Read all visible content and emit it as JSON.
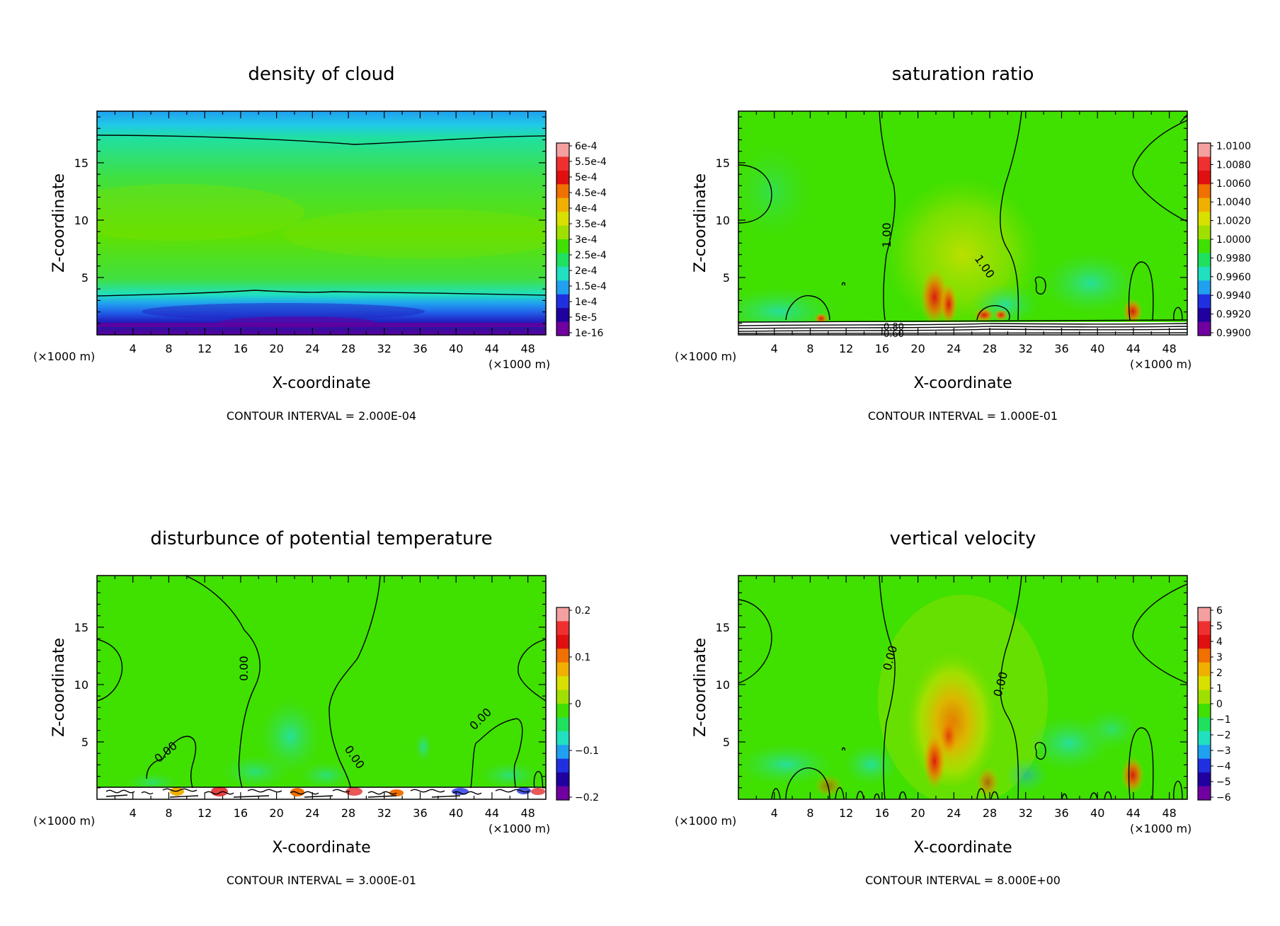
{
  "panels": [
    {
      "title": "density of cloud",
      "xlabel": "X-coordinate",
      "ylabel": "Z-coordinate",
      "x_unit_left": "(×1000 m)",
      "x_unit_right": "(×1000 m)",
      "contour_interval": "CONTOUR INTERVAL = 2.000E-04",
      "x_ticks": [
        "4",
        "8",
        "12",
        "16",
        "20",
        "24",
        "28",
        "32",
        "36",
        "40",
        "44",
        "48"
      ],
      "y_ticks": [
        "5",
        "10",
        "15"
      ],
      "colorbar_labels": [
        "6e-4",
        "5.5e-4",
        "5e-4",
        "4.5e-4",
        "4e-4",
        "3.5e-4",
        "3e-4",
        "2.5e-4",
        "2e-4",
        "1.5e-4",
        "1e-4",
        "5e-5",
        "1e-16"
      ],
      "contour_labels": []
    },
    {
      "title": "saturation ratio",
      "xlabel": "X-coordinate",
      "ylabel": "Z-coordinate",
      "x_unit_left": "(×1000 m)",
      "x_unit_right": "(×1000 m)",
      "contour_interval": "CONTOUR INTERVAL = 1.000E-01",
      "x_ticks": [
        "4",
        "8",
        "12",
        "16",
        "20",
        "24",
        "28",
        "32",
        "36",
        "40",
        "44",
        "48"
      ],
      "y_ticks": [
        "5",
        "10",
        "15"
      ],
      "colorbar_labels": [
        "1.0100",
        "1.0080",
        "1.0060",
        "1.0040",
        "1.0020",
        "1.0000",
        "0.9980",
        "0.9960",
        "0.9940",
        "0.9920",
        "0.9900"
      ],
      "contour_labels": [
        "1.00",
        "1.00",
        "0.80",
        "0.60"
      ]
    },
    {
      "title": "disturbunce of potential temperature",
      "xlabel": "X-coordinate",
      "ylabel": "Z-coordinate",
      "x_unit_left": "(×1000 m)",
      "x_unit_right": "(×1000 m)",
      "contour_interval": "CONTOUR INTERVAL = 3.000E-01",
      "x_ticks": [
        "4",
        "8",
        "12",
        "16",
        "20",
        "24",
        "28",
        "32",
        "36",
        "40",
        "44",
        "48"
      ],
      "y_ticks": [
        "5",
        "10",
        "15"
      ],
      "colorbar_labels": [
        "0.2",
        "0.1",
        "0",
        "−0.1",
        "−0.2"
      ],
      "contour_labels": [
        "0.00",
        "0.00",
        "0.00",
        "0.00"
      ]
    },
    {
      "title": "vertical velocity",
      "xlabel": "X-coordinate",
      "ylabel": "Z-coordinate",
      "x_unit_left": "(×1000 m)",
      "x_unit_right": "(×1000 m)",
      "contour_interval": "CONTOUR INTERVAL = 8.000E+00",
      "x_ticks": [
        "4",
        "8",
        "12",
        "16",
        "20",
        "24",
        "28",
        "32",
        "36",
        "40",
        "44",
        "48"
      ],
      "y_ticks": [
        "5",
        "10",
        "15"
      ],
      "colorbar_labels": [
        "6",
        "5",
        "4",
        "3",
        "2",
        "1",
        "0",
        "−1",
        "−2",
        "−3",
        "−4",
        "−5",
        "−6"
      ],
      "contour_labels": [
        "0.00",
        "0.00"
      ]
    }
  ],
  "colorbar_colors": [
    "#f4a0a0",
    "#f03030",
    "#e01010",
    "#f07000",
    "#f0b000",
    "#d8e000",
    "#a0e000",
    "#40e000",
    "#20e060",
    "#20e0c0",
    "#20a0f0",
    "#2030e0",
    "#2000a0",
    "#7000a0"
  ],
  "chart_data": [
    {
      "type": "heatmap",
      "title": "density of cloud",
      "xlabel": "X-coordinate",
      "ylabel": "Z-coordinate",
      "x_range_km": [
        0,
        50
      ],
      "z_range_km": [
        0,
        19.5
      ],
      "colorbar_range": [
        1e-16,
        0.0006
      ],
      "contour_interval": 0.0002,
      "summary": "Green band (~3e-4) from z≈4 to 17 km; cyan/blue above 17 km; dark blue/purple near surface below 3.5 km"
    },
    {
      "type": "heatmap",
      "title": "saturation ratio",
      "xlabel": "X-coordinate",
      "ylabel": "Z-coordinate",
      "x_range_km": [
        0,
        50
      ],
      "z_range_km": [
        0,
        19.5
      ],
      "colorbar_range": [
        0.99,
        1.01
      ],
      "contour_interval": 0.1,
      "summary": "Mostly ~1.000 (green); yellow/red plume near x≈20-24 km below 9 km; near-surface maxima at x≈9, 22, 28, 43 km"
    },
    {
      "type": "heatmap",
      "title": "disturbunce of potential temperature",
      "xlabel": "X-coordinate",
      "ylabel": "Z-coordinate",
      "x_range_km": [
        0,
        50
      ],
      "z_range_km": [
        0,
        19.5
      ],
      "colorbar_range": [
        -0.2,
        0.2
      ],
      "contour_interval": 0.3,
      "summary": "Near 0 everywhere; noisy contours in lowest 1.5 km"
    },
    {
      "type": "heatmap",
      "title": "vertical velocity",
      "xlabel": "X-coordinate",
      "ylabel": "Z-coordinate",
      "x_range_km": [
        0,
        50
      ],
      "z_range_km": [
        0,
        19.5
      ],
      "colorbar_range": [
        -6,
        6
      ],
      "contour_interval": 8.0,
      "summary": "Updraft core ~3 near x≈22 km, z≈4-8 km; weaker updrafts at x≈28 and 43 km; weak downdrafts (-1 to -2) elsewhere"
    }
  ]
}
